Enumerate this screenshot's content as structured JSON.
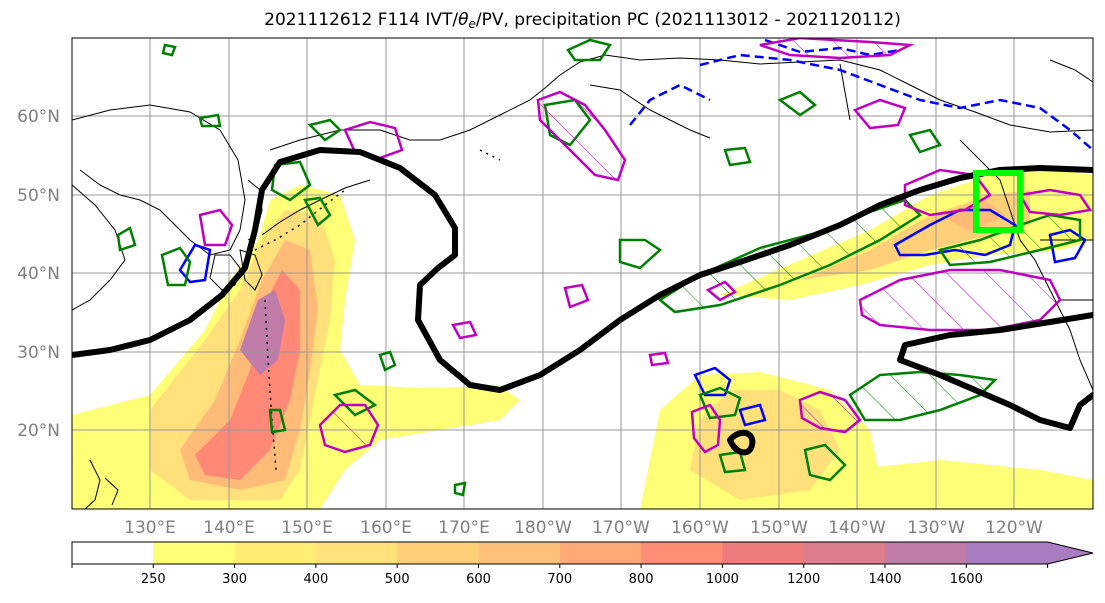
{
  "title": {
    "prefix": "2021112612 F114 IVT/",
    "theta": "θ",
    "theta_sub": "e",
    "suffix": "/PV, precipitation PC (2021113012 - 2021120112)"
  },
  "map": {
    "lat_ticks": [
      "60°N",
      "50°N",
      "40°N",
      "30°N",
      "20°N"
    ],
    "lon_ticks": [
      "130°E",
      "140°E",
      "150°E",
      "160°E",
      "170°E",
      "180°W",
      "170°W",
      "160°W",
      "150°W",
      "140°W",
      "130°W",
      "120°W"
    ],
    "fill_colors": [
      "#ffffff",
      "#ffff77",
      "#fff070",
      "#ffe07a",
      "#ffcc7a",
      "#ffbb77",
      "#ffa070",
      "#ff8877",
      "#f07a7a",
      "#e07c8c",
      "#c07ca8",
      "#a87cc0"
    ],
    "contour_colors": {
      "ivt_line": "#000000",
      "green": "#008000",
      "blue": "#0000ff",
      "magenta": "#c000c0",
      "box": "#00ff00"
    }
  },
  "colorbar": {
    "labels": [
      "250",
      "300",
      "400",
      "500",
      "600",
      "700",
      "800",
      "1000",
      "1200",
      "1400",
      "1600"
    ],
    "colors": [
      "#ffffff",
      "#ffff77",
      "#ffec74",
      "#ffe07a",
      "#ffd078",
      "#ffc07a",
      "#ffaa76",
      "#ff8e76",
      "#ef7c7c",
      "#dc7c8c",
      "#c07ca8",
      "#a87cc0",
      "#a87cc0"
    ]
  }
}
